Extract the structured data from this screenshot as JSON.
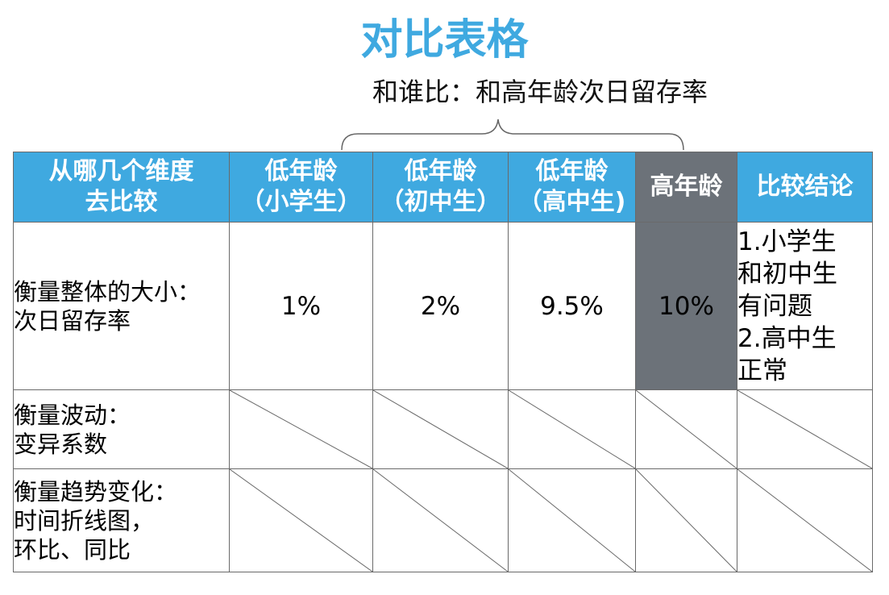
{
  "title": "对比表格",
  "subtitle": "和谁比：和高年龄次日留存率",
  "colors": {
    "title": "#3fa9e0",
    "header_bg": "#3fa9e0",
    "highlight_bg": "#6c7279",
    "border": "#6a6a6a"
  },
  "table": {
    "headers": [
      {
        "line1": "从哪几个维度",
        "line2": "去比较"
      },
      {
        "line1": "低年龄",
        "line2": "（小学生）"
      },
      {
        "line1": "低年龄",
        "line2": "（初中生）"
      },
      {
        "line1": "低年龄",
        "line2": "（高中生)"
      },
      {
        "line1": "高年龄",
        "line2": ""
      },
      {
        "line1": "比较结论",
        "line2": ""
      }
    ],
    "rows": [
      {
        "dimension": [
          "衡量整体的大小：",
          "次日留存率"
        ],
        "values": [
          "1%",
          "2%",
          "9.5%",
          "10%"
        ],
        "conclusion": [
          "1.小学生",
          "和初中生",
          "有问题",
          "2.高中生",
          "正常"
        ]
      },
      {
        "dimension": [
          "衡量波动：",
          "变异系数"
        ],
        "values": [],
        "conclusion": []
      },
      {
        "dimension": [
          "衡量趋势变化：",
          "时间折线图，",
          "环比、同比"
        ],
        "values": [],
        "conclusion": []
      }
    ]
  }
}
